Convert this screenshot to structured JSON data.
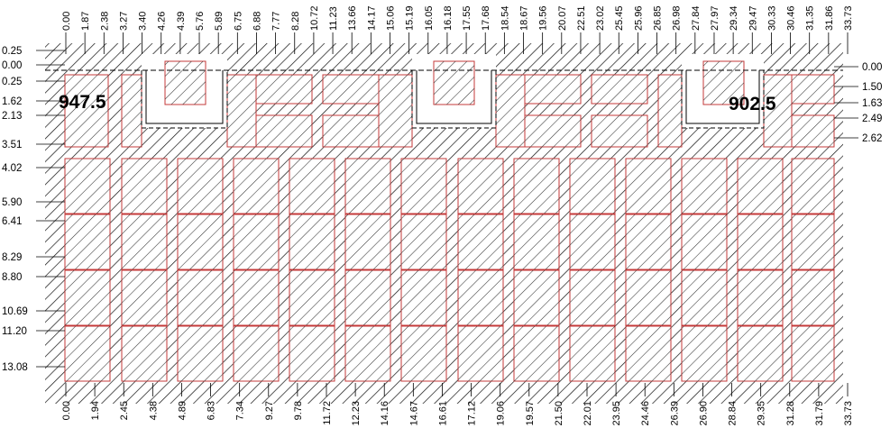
{
  "drawing": {
    "area_labels": [
      "947.5",
      "902.5"
    ],
    "top_x_labels": [
      "0.00",
      "1.87",
      "2.38",
      "3.27",
      "3.40",
      "4.26",
      "4.39",
      "5.76",
      "5.89",
      "6.75",
      "6.88",
      "7.77",
      "8.28",
      "10.72",
      "11.23",
      "13.66",
      "14.17",
      "15.06",
      "15.19",
      "16.05",
      "16.18",
      "17.55",
      "17.68",
      "18.54",
      "18.67",
      "19.56",
      "20.07",
      "22.51",
      "23.02",
      "25.45",
      "25.96",
      "26.85",
      "26.98",
      "27.84",
      "27.97",
      "29.34",
      "29.47",
      "30.33",
      "30.46",
      "31.35",
      "31.86",
      "33.73"
    ],
    "bottom_x_labels": [
      "0.00",
      "1.94",
      "2.45",
      "4.38",
      "4.89",
      "6.83",
      "7.34",
      "9.27",
      "9.78",
      "11.72",
      "12.23",
      "14.16",
      "14.67",
      "16.61",
      "17.12",
      "19.06",
      "19.57",
      "21.50",
      "22.01",
      "23.95",
      "24.46",
      "26.39",
      "26.90",
      "28.84",
      "29.35",
      "31.28",
      "31.79",
      "33.73"
    ],
    "left_y_labels": [
      "0.25",
      "0.00",
      "0.25",
      "1.62",
      "2.13",
      "3.51",
      "4.02",
      "5.90",
      "6.41",
      "8.29",
      "8.80",
      "10.69",
      "11.20",
      "13.08"
    ],
    "right_y_labels": [
      "0.00",
      "1.50",
      "1.63",
      "2.49",
      "2.62"
    ],
    "colors": {
      "hatch": "#111111",
      "block_outline": "#c43a3a",
      "block_fill": "#ffffff",
      "dim_line": "#000000"
    }
  }
}
